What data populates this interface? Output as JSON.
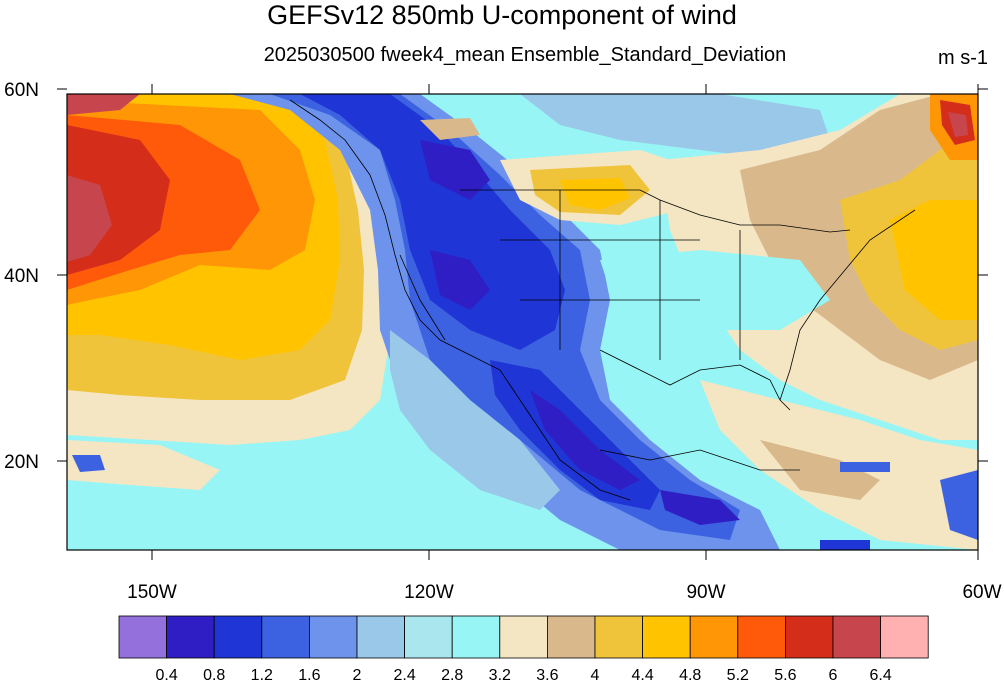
{
  "title": "GEFSv12 850mb U-component of wind",
  "subtitle": "2025030500 fweek4_mean Ensemble_Standard_Deviation",
  "units": "m s-1",
  "map": {
    "lat_labels": [
      "60N",
      "40N",
      "20N"
    ],
    "lon_labels": [
      "150W",
      "120W",
      "90W",
      "60W"
    ]
  },
  "colorbar": {
    "colors": [
      "#9370db",
      "#2f1ec4",
      "#1f35d6",
      "#3c62e1",
      "#6e93ec",
      "#9ac8e9",
      "#a9e6ee",
      "#98f5f5",
      "#f4e6c3",
      "#d9b98c",
      "#f0c43a",
      "#ffc300",
      "#ff9606",
      "#ff5a0a",
      "#d42d1a",
      "#c7464d",
      "#ffb0b0"
    ],
    "labels": [
      "0.4",
      "0.8",
      "1.2",
      "1.6",
      "2",
      "2.4",
      "2.8",
      "3.2",
      "3.6",
      "4",
      "4.4",
      "4.8",
      "5.2",
      "5.6",
      "6",
      "6.4"
    ]
  }
}
